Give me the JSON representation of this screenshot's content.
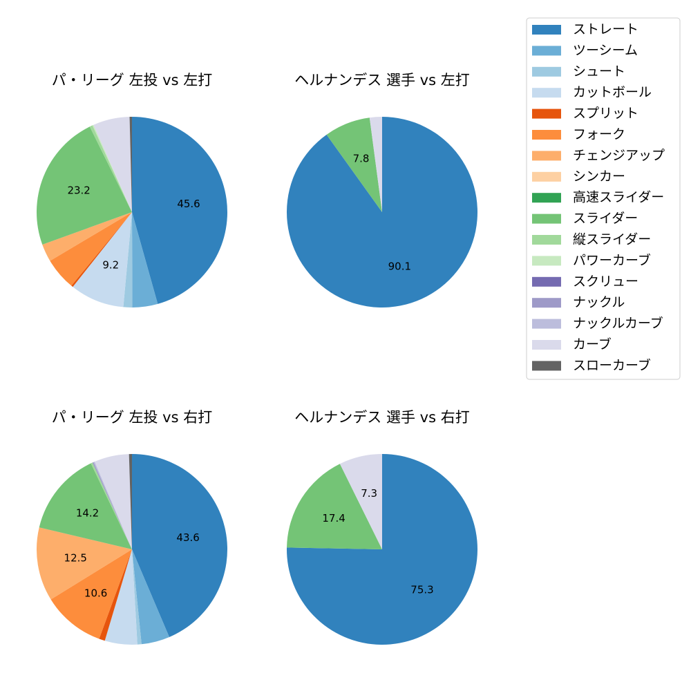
{
  "chart_data": [
    {
      "type": "pie",
      "title": "パ・リーグ 左投 vs 左打",
      "values": [
        45.6,
        4.3,
        1.5,
        9.2,
        0.3,
        5.5,
        3.0,
        0,
        0,
        23.2,
        0.5,
        0.2,
        0,
        0,
        0,
        6.2,
        0.4
      ]
    },
    {
      "type": "pie",
      "title": "ヘルナンデス 選手 vs 左打",
      "values": [
        90.1,
        0,
        0,
        0,
        0,
        0,
        0,
        0,
        0,
        7.8,
        0,
        0,
        0,
        0,
        0,
        2.1,
        0
      ]
    },
    {
      "type": "pie",
      "title": "パ・リーグ 左投 vs 右打",
      "values": [
        43.6,
        4.8,
        0.7,
        5.5,
        1.0,
        10.6,
        12.5,
        0,
        0,
        14.2,
        0.3,
        0,
        0,
        0.2,
        0.2,
        5.9,
        0.5
      ]
    },
    {
      "type": "pie",
      "title": "ヘルナンデス 選手 vs 右打",
      "values": [
        75.3,
        0,
        0,
        0,
        0,
        0,
        0,
        0,
        0,
        17.4,
        0,
        0,
        0,
        0,
        0,
        7.3,
        0
      ]
    }
  ],
  "legend": {
    "categories": [
      "ストレート",
      "ツーシーム",
      "シュート",
      "カットボール",
      "スプリット",
      "フォーク",
      "チェンジアップ",
      "シンカー",
      "高速スライダー",
      "スライダー",
      "縦スライダー",
      "パワーカーブ",
      "スクリュー",
      "ナックル",
      "ナックルカーブ",
      "カーブ",
      "スローカーブ"
    ],
    "colors": [
      "#3182bd",
      "#6baed6",
      "#9ecae1",
      "#c6dbef",
      "#e6550d",
      "#fd8d3c",
      "#fdae6b",
      "#fdd0a2",
      "#31a354",
      "#74c476",
      "#a1d99b",
      "#c7e9c0",
      "#756bb1",
      "#9e9ac8",
      "#bcbddc",
      "#dadaeb",
      "#636363"
    ]
  }
}
